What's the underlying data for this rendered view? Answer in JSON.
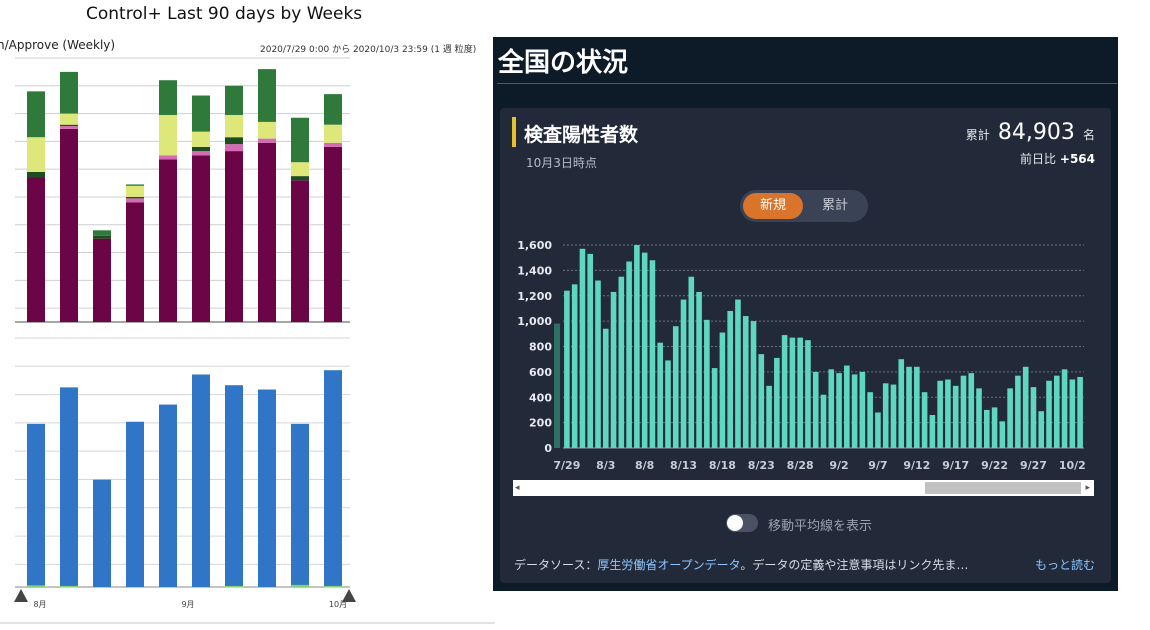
{
  "left_report": {
    "title": "Control+ Last 90 days by Weeks",
    "subtitle": "n/Approve (Weekly)",
    "date_range": "2020/7/29 0:00 から 2020/10/3 23:59 (1 週 粒度)",
    "month_labels": [
      "8月",
      "9月",
      "10月"
    ]
  },
  "right_panel": {
    "heading": "全国の状況",
    "card_title": "検査陽性者数",
    "as_of": "10月3日時点",
    "total_label": "累計",
    "total_value": "84,903",
    "total_unit": "名",
    "diff_label": "前日比",
    "diff_value": "+564",
    "toggle": {
      "new_label": "新規",
      "cumulative_label": "累計",
      "selected": "新規"
    },
    "moving_avg_label": "移動平均線を表示",
    "source_prefix": "データソース：",
    "source_link": "厚生労働省オープンデータ",
    "source_note": "。データの定義や注意事項はリンク先ま…",
    "more_link": "もっと読む",
    "scroll_left_arrow": "◂",
    "scroll_right_arrow": "▸"
  },
  "colors": {
    "maroon": "#6b0545",
    "pink": "#d66bb5",
    "dark_green": "#1f4d22",
    "light_yellow": "#dde77a",
    "green": "#2f7a3b",
    "blue": "#3176c6",
    "mint": "#5fd6bf",
    "orange": "#d9742a",
    "accent_yellow": "#e6c12f"
  },
  "chart_data": [
    {
      "type": "bar",
      "stacked": true,
      "title": "Control+ Last 90 days by Weeks",
      "weeks": 10,
      "series": [
        {
          "values": [
            1040,
            1390,
            600,
            860,
            1170,
            1200,
            1230,
            1290,
            1020,
            1260
          ]
        },
        {
          "values": [
            0,
            20,
            0,
            30,
            30,
            30,
            50,
            30,
            0,
            30
          ]
        },
        {
          "values": [
            40,
            10,
            20,
            10,
            0,
            30,
            50,
            0,
            30,
            0
          ]
        },
        {
          "values": [
            250,
            80,
            0,
            80,
            290,
            110,
            160,
            120,
            100,
            130
          ]
        },
        {
          "values": [
            330,
            300,
            40,
            10,
            250,
            260,
            210,
            380,
            320,
            220
          ]
        }
      ],
      "ylim": [
        0,
        1900
      ],
      "grid": true
    },
    {
      "type": "bar",
      "weeks": 10,
      "series": [
        {
          "values": [
            760,
            930,
            500,
            770,
            850,
            990,
            940,
            920,
            760,
            1010
          ]
        },
        {
          "values": [
            8,
            5,
            0,
            0,
            0,
            0,
            5,
            0,
            10,
            5
          ]
        }
      ],
      "ylim": [
        0,
        1160
      ],
      "grid": true
    },
    {
      "type": "bar",
      "title": "検査陽性者数",
      "x": [
        "7/29",
        "7/30",
        "7/31",
        "8/1",
        "8/2",
        "8/3",
        "8/4",
        "8/5",
        "8/6",
        "8/7",
        "8/8",
        "8/9",
        "8/10",
        "8/11",
        "8/12",
        "8/13",
        "8/14",
        "8/15",
        "8/16",
        "8/17",
        "8/18",
        "8/19",
        "8/20",
        "8/21",
        "8/22",
        "8/23",
        "8/24",
        "8/25",
        "8/26",
        "8/27",
        "8/28",
        "8/29",
        "8/30",
        "8/31",
        "9/1",
        "9/2",
        "9/3",
        "9/4",
        "9/5",
        "9/6",
        "9/7",
        "9/8",
        "9/9",
        "9/10",
        "9/11",
        "9/12",
        "9/13",
        "9/14",
        "9/15",
        "9/16",
        "9/17",
        "9/18",
        "9/19",
        "9/20",
        "9/21",
        "9/22",
        "9/23",
        "9/24",
        "9/25",
        "9/26",
        "9/27",
        "9/28",
        "9/29",
        "9/30",
        "10/1",
        "10/2",
        "10/3"
      ],
      "values": [
        1240,
        1290,
        1570,
        1530,
        1320,
        940,
        1230,
        1350,
        1470,
        1600,
        1540,
        1480,
        830,
        690,
        960,
        1170,
        1350,
        1230,
        1010,
        630,
        910,
        1080,
        1170,
        1040,
        1000,
        740,
        490,
        710,
        890,
        870,
        870,
        850,
        600,
        420,
        620,
        590,
        650,
        580,
        600,
        440,
        280,
        510,
        500,
        700,
        640,
        640,
        440,
        260,
        530,
        540,
        490,
        570,
        590,
        470,
        300,
        320,
        210,
        470,
        570,
        640,
        480,
        290,
        530,
        570,
        620,
        540,
        560
      ],
      "xticks": [
        "7/29",
        "8/3",
        "8/8",
        "8/13",
        "8/18",
        "8/23",
        "8/28",
        "9/2",
        "9/7",
        "9/12",
        "9/17",
        "9/22",
        "9/27",
        "10/2"
      ],
      "yticks": [
        "0",
        "200",
        "400",
        "600",
        "800",
        "1,000",
        "1,200",
        "1,400",
        "1,600"
      ],
      "ylim": [
        0,
        1600
      ],
      "grid": true
    }
  ]
}
